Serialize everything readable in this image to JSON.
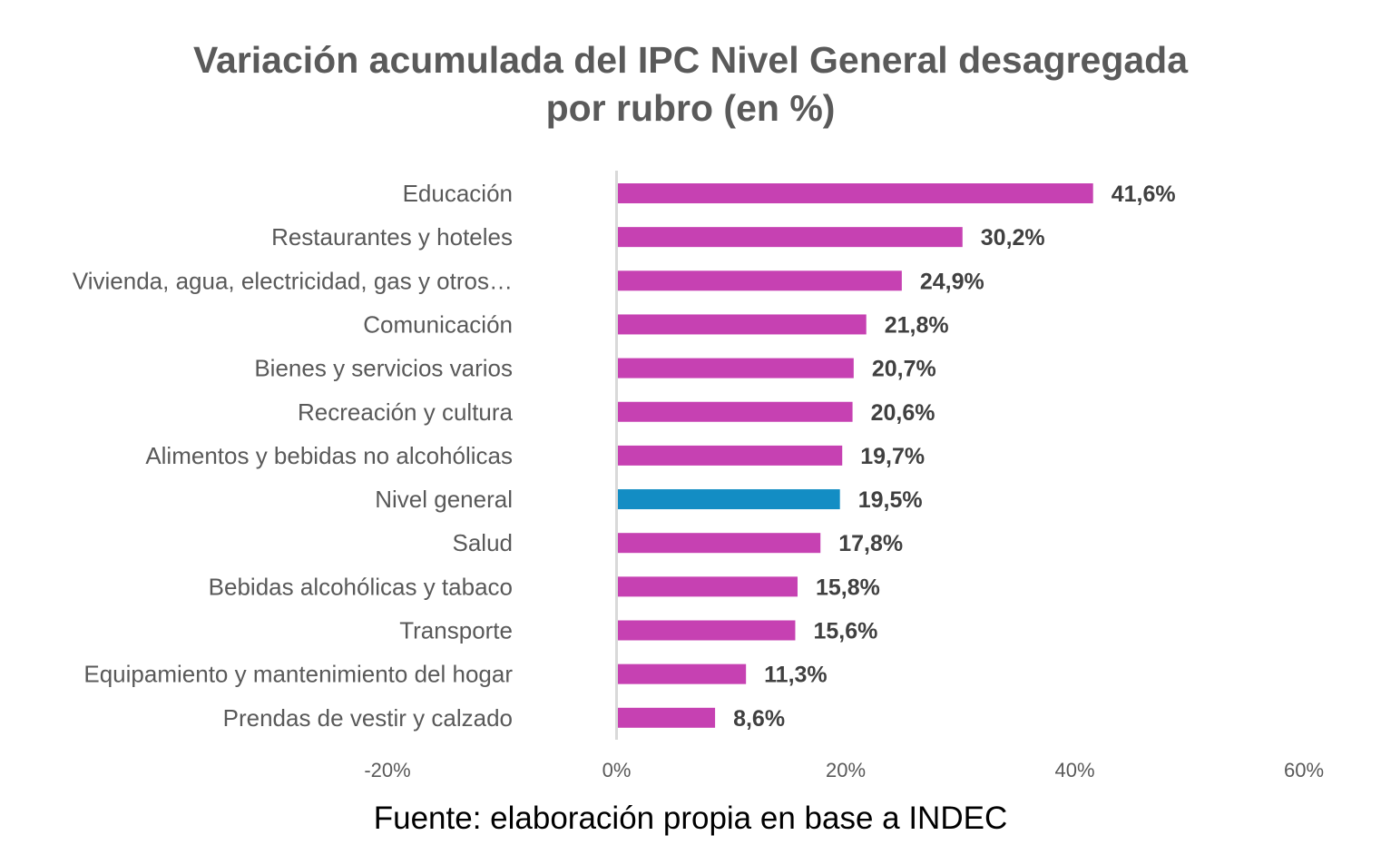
{
  "colors": {
    "bar": "#c641b2",
    "highlight": "#138dc4",
    "axis": "#d9d9d9"
  },
  "chart_data": {
    "type": "bar",
    "orientation": "horizontal",
    "title": "Variación acumulada del IPC Nivel General desagregada por rubro (en %)",
    "title_lines": [
      "Variación acumulada del IPC Nivel General desagregada",
      "por rubro (en %)"
    ],
    "categories": [
      "Educación",
      "Restaurantes y hoteles",
      "Vivienda, agua, electricidad, gas y otros…",
      "Comunicación",
      "Bienes y servicios varios",
      "Recreación y cultura",
      "Alimentos y bebidas no alcohólicas",
      "Nivel general",
      "Salud",
      "Bebidas alcohólicas y tabaco",
      "Transporte",
      "Equipamiento y mantenimiento del hogar",
      "Prendas de vestir y calzado"
    ],
    "values": [
      41.6,
      30.2,
      24.9,
      21.8,
      20.7,
      20.6,
      19.7,
      19.5,
      17.8,
      15.8,
      15.6,
      11.3,
      8.6
    ],
    "data_labels": [
      "41,6%",
      "30,2%",
      "24,9%",
      "21,8%",
      "20,7%",
      "20,6%",
      "19,7%",
      "19,5%",
      "17,8%",
      "15,8%",
      "15,6%",
      "11,3%",
      "8,6%"
    ],
    "highlight_category": "Nivel general",
    "xlim": [
      -20,
      60
    ],
    "x_ticks": [
      -20,
      0,
      20,
      40,
      60
    ],
    "x_tick_labels": [
      "-20%",
      "0%",
      "20%",
      "40%",
      "60%"
    ],
    "xlabel": "",
    "ylabel": "",
    "grid": false,
    "legend": "none"
  },
  "source": "Fuente: elaboración propia en base a INDEC"
}
